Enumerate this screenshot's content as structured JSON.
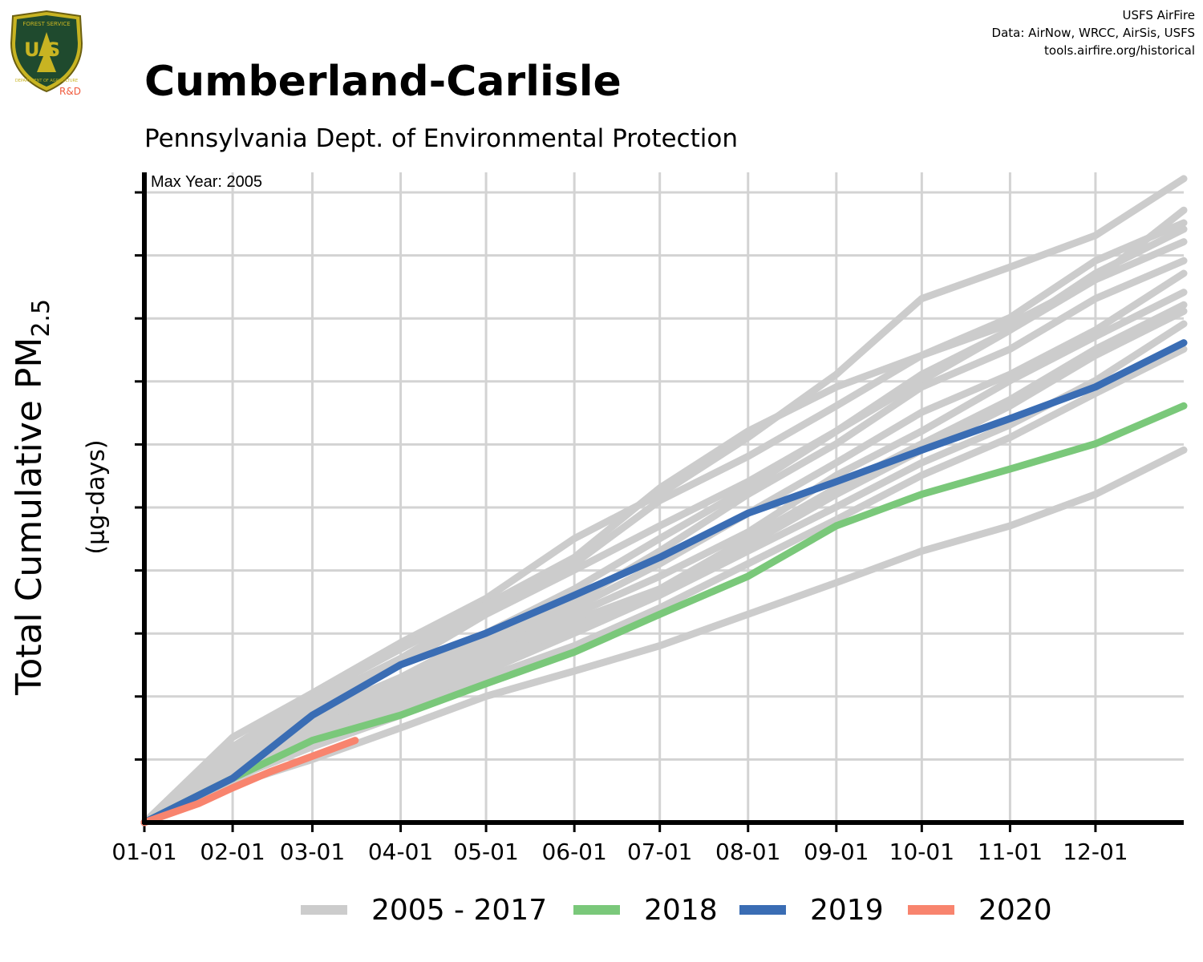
{
  "header": {
    "title": "Cumberland-Carlisle",
    "subtitle": "Pennsylvania Dept. of Environmental Protection",
    "credits": [
      "USFS AirFire",
      "Data: AirNow, WRCC, AirSis, USFS",
      "tools.airfire.org/historical"
    ]
  },
  "logo": {
    "top_text": "FOREST SERVICE",
    "letters": "U S",
    "bottom_text": "DEPARTMENT OF AGRICULTURE",
    "tag": "R&D"
  },
  "chart_data": {
    "type": "line",
    "title": "Cumberland-Carlisle",
    "subtitle": "Pennsylvania Dept. of Environmental Protection",
    "ylabel_main": "Total Cumulative PM",
    "ylabel_sub": "2.5",
    "ylabel_unit": "(µg-days)",
    "annotation": "Max Year: 2005",
    "x_tick_labels": [
      "01-01",
      "02-01",
      "03-01",
      "04-01",
      "05-01",
      "06-01",
      "07-01",
      "08-01",
      "09-01",
      "10-01",
      "11-01",
      "12-01"
    ],
    "x_tick_days": [
      1,
      32,
      60,
      91,
      121,
      152,
      182,
      213,
      244,
      274,
      305,
      335
    ],
    "x_range": [
      1,
      366
    ],
    "y_range": [
      0,
      1.03
    ],
    "y_ticks_labeled": false,
    "grid": true,
    "legend_position": "bottom",
    "colors": {
      "historical": "#cccccc",
      "2018": "#7ac87a",
      "2019": "#3a6db4",
      "2020": "#f8846e"
    },
    "series": [
      {
        "name": "2005 - 2017",
        "group": "historical",
        "points": [
          [
            1,
            0
          ],
          [
            32,
            0.135
          ],
          [
            60,
            0.205
          ],
          [
            91,
            0.285
          ],
          [
            121,
            0.355
          ],
          [
            152,
            0.45
          ],
          [
            182,
            0.52
          ],
          [
            213,
            0.61
          ],
          [
            244,
            0.71
          ],
          [
            274,
            0.83
          ],
          [
            305,
            0.88
          ],
          [
            335,
            0.93
          ],
          [
            366,
            1.02
          ]
        ]
      },
      {
        "group": "historical",
        "points": [
          [
            1,
            0
          ],
          [
            32,
            0.12
          ],
          [
            60,
            0.2
          ],
          [
            91,
            0.275
          ],
          [
            121,
            0.345
          ],
          [
            152,
            0.42
          ],
          [
            182,
            0.53
          ],
          [
            213,
            0.62
          ],
          [
            244,
            0.69
          ],
          [
            274,
            0.74
          ],
          [
            305,
            0.79
          ],
          [
            335,
            0.86
          ],
          [
            366,
            0.97
          ]
        ]
      },
      {
        "group": "historical",
        "points": [
          [
            1,
            0
          ],
          [
            32,
            0.12
          ],
          [
            60,
            0.19
          ],
          [
            91,
            0.26
          ],
          [
            121,
            0.34
          ],
          [
            152,
            0.41
          ],
          [
            182,
            0.51
          ],
          [
            213,
            0.58
          ],
          [
            244,
            0.66
          ],
          [
            274,
            0.74
          ],
          [
            305,
            0.8
          ],
          [
            335,
            0.89
          ],
          [
            366,
            0.95
          ]
        ]
      },
      {
        "group": "historical",
        "points": [
          [
            1,
            0
          ],
          [
            32,
            0.11
          ],
          [
            60,
            0.18
          ],
          [
            91,
            0.25
          ],
          [
            121,
            0.33
          ],
          [
            152,
            0.4
          ],
          [
            182,
            0.47
          ],
          [
            213,
            0.54
          ],
          [
            244,
            0.62
          ],
          [
            274,
            0.7
          ],
          [
            305,
            0.78
          ],
          [
            335,
            0.87
          ],
          [
            366,
            0.94
          ]
        ]
      },
      {
        "group": "historical",
        "points": [
          [
            1,
            0
          ],
          [
            32,
            0.1
          ],
          [
            60,
            0.17
          ],
          [
            91,
            0.23
          ],
          [
            121,
            0.3
          ],
          [
            152,
            0.37
          ],
          [
            182,
            0.45
          ],
          [
            213,
            0.53
          ],
          [
            244,
            0.62
          ],
          [
            274,
            0.71
          ],
          [
            305,
            0.78
          ],
          [
            335,
            0.86
          ],
          [
            366,
            0.92
          ]
        ]
      },
      {
        "group": "historical",
        "points": [
          [
            1,
            0
          ],
          [
            32,
            0.1
          ],
          [
            60,
            0.16
          ],
          [
            91,
            0.22
          ],
          [
            121,
            0.29
          ],
          [
            152,
            0.35
          ],
          [
            182,
            0.43
          ],
          [
            213,
            0.52
          ],
          [
            244,
            0.6
          ],
          [
            274,
            0.69
          ],
          [
            305,
            0.75
          ],
          [
            335,
            0.83
          ],
          [
            366,
            0.89
          ]
        ]
      },
      {
        "group": "historical",
        "points": [
          [
            1,
            0
          ],
          [
            32,
            0.09
          ],
          [
            60,
            0.16
          ],
          [
            91,
            0.22
          ],
          [
            121,
            0.28
          ],
          [
            152,
            0.34
          ],
          [
            182,
            0.41
          ],
          [
            213,
            0.49
          ],
          [
            244,
            0.57
          ],
          [
            274,
            0.65
          ],
          [
            305,
            0.71
          ],
          [
            335,
            0.78
          ],
          [
            366,
            0.87
          ]
        ]
      },
      {
        "group": "historical",
        "points": [
          [
            1,
            0
          ],
          [
            32,
            0.09
          ],
          [
            60,
            0.15
          ],
          [
            91,
            0.21
          ],
          [
            121,
            0.27
          ],
          [
            152,
            0.33
          ],
          [
            182,
            0.39
          ],
          [
            213,
            0.46
          ],
          [
            244,
            0.55
          ],
          [
            274,
            0.62
          ],
          [
            305,
            0.7
          ],
          [
            335,
            0.77
          ],
          [
            366,
            0.84
          ]
        ]
      },
      {
        "group": "historical",
        "points": [
          [
            1,
            0
          ],
          [
            32,
            0.08
          ],
          [
            60,
            0.14
          ],
          [
            91,
            0.2
          ],
          [
            121,
            0.26
          ],
          [
            152,
            0.32
          ],
          [
            182,
            0.37
          ],
          [
            213,
            0.44
          ],
          [
            244,
            0.52
          ],
          [
            274,
            0.59
          ],
          [
            305,
            0.66
          ],
          [
            335,
            0.74
          ],
          [
            366,
            0.81
          ]
        ]
      },
      {
        "group": "historical",
        "points": [
          [
            1,
            0
          ],
          [
            32,
            0.08
          ],
          [
            60,
            0.14
          ],
          [
            91,
            0.19
          ],
          [
            121,
            0.25
          ],
          [
            152,
            0.31
          ],
          [
            182,
            0.37
          ],
          [
            213,
            0.45
          ],
          [
            244,
            0.53
          ],
          [
            274,
            0.6
          ],
          [
            305,
            0.67
          ],
          [
            335,
            0.75
          ],
          [
            366,
            0.82
          ]
        ]
      },
      {
        "group": "historical",
        "points": [
          [
            1,
            0
          ],
          [
            32,
            0.08
          ],
          [
            60,
            0.13
          ],
          [
            91,
            0.18
          ],
          [
            121,
            0.24
          ],
          [
            152,
            0.3
          ],
          [
            182,
            0.36
          ],
          [
            213,
            0.43
          ],
          [
            244,
            0.5
          ],
          [
            274,
            0.57
          ],
          [
            305,
            0.63
          ],
          [
            335,
            0.7
          ],
          [
            366,
            0.79
          ]
        ]
      },
      {
        "group": "historical",
        "points": [
          [
            1,
            0
          ],
          [
            32,
            0.07
          ],
          [
            60,
            0.12
          ],
          [
            91,
            0.17
          ],
          [
            121,
            0.23
          ],
          [
            152,
            0.28
          ],
          [
            182,
            0.34
          ],
          [
            213,
            0.41
          ],
          [
            244,
            0.48
          ],
          [
            274,
            0.55
          ],
          [
            305,
            0.61
          ],
          [
            335,
            0.68
          ],
          [
            366,
            0.75
          ]
        ]
      },
      {
        "group": "historical",
        "points": [
          [
            1,
            0
          ],
          [
            32,
            0.06
          ],
          [
            60,
            0.1
          ],
          [
            91,
            0.15
          ],
          [
            121,
            0.2
          ],
          [
            152,
            0.24
          ],
          [
            182,
            0.28
          ],
          [
            213,
            0.33
          ],
          [
            244,
            0.38
          ],
          [
            274,
            0.43
          ],
          [
            305,
            0.47
          ],
          [
            335,
            0.52
          ],
          [
            366,
            0.59
          ]
        ]
      },
      {
        "name": "2018",
        "group": "2018",
        "points": [
          [
            1,
            0
          ],
          [
            32,
            0.07
          ],
          [
            60,
            0.13
          ],
          [
            91,
            0.17
          ],
          [
            121,
            0.22
          ],
          [
            152,
            0.27
          ],
          [
            182,
            0.33
          ],
          [
            213,
            0.39
          ],
          [
            244,
            0.47
          ],
          [
            274,
            0.52
          ],
          [
            305,
            0.56
          ],
          [
            335,
            0.6
          ],
          [
            366,
            0.66
          ]
        ]
      },
      {
        "name": "2019",
        "group": "2019",
        "points": [
          [
            1,
            0
          ],
          [
            32,
            0.07
          ],
          [
            60,
            0.17
          ],
          [
            91,
            0.25
          ],
          [
            121,
            0.3
          ],
          [
            152,
            0.36
          ],
          [
            182,
            0.42
          ],
          [
            213,
            0.49
          ],
          [
            244,
            0.54
          ],
          [
            274,
            0.59
          ],
          [
            305,
            0.64
          ],
          [
            335,
            0.69
          ],
          [
            366,
            0.76
          ]
        ]
      },
      {
        "name": "2020",
        "group": "2020",
        "points": [
          [
            1,
            0
          ],
          [
            20,
            0.03
          ],
          [
            32,
            0.055
          ],
          [
            45,
            0.08
          ],
          [
            60,
            0.105
          ],
          [
            75,
            0.13
          ]
        ]
      }
    ]
  }
}
